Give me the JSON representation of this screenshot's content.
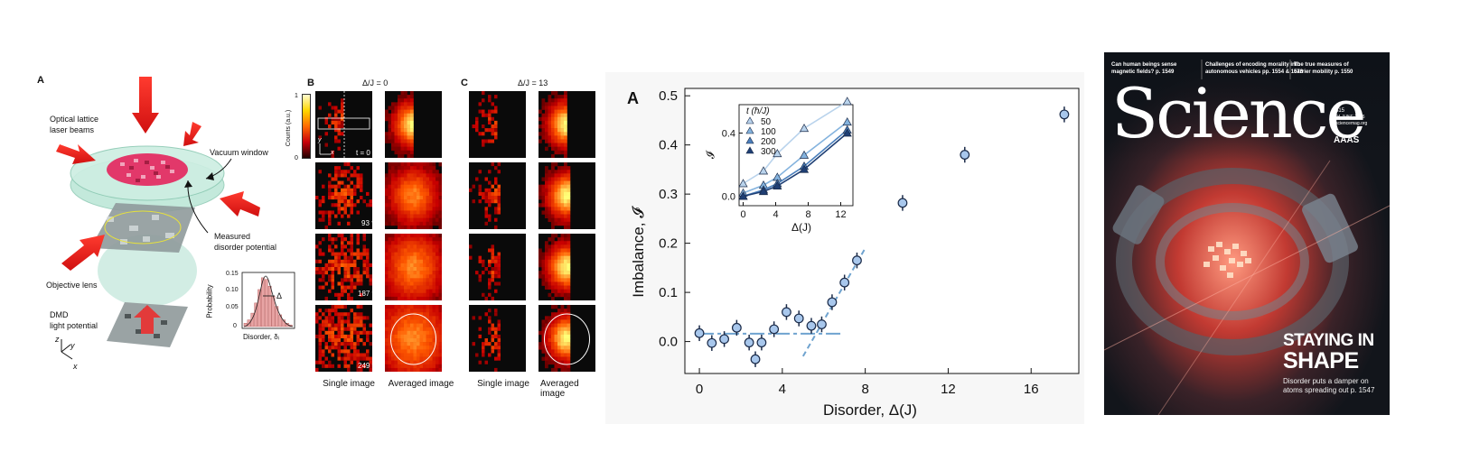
{
  "panel_a": {
    "letter": "A",
    "labels": {
      "laser": "Optical lattice\nlaser beams",
      "vacuum": "Vacuum window",
      "disorder": "Measured\ndisorder potential",
      "objective": "Objective lens",
      "dmd": "DMD\nlight potential",
      "ax_z": "z",
      "ax_y": "y",
      "ax_x": "x"
    },
    "histogram": {
      "ylabel": "Probability",
      "xlabel": "Disorder, δᵢ",
      "yticks": [
        "0.15",
        "0.10",
        "0.05",
        "0"
      ],
      "delta": "Δ",
      "bars": [
        0.01,
        0.02,
        0.04,
        0.07,
        0.11,
        0.145,
        0.14,
        0.12,
        0.09,
        0.06,
        0.035,
        0.02,
        0.01,
        0.005
      ]
    }
  },
  "panel_b": {
    "letter": "B",
    "title": "Δ/J = 0",
    "colorbar": {
      "label": "Counts (a.u.)",
      "max": "1",
      "min": "0"
    },
    "times": [
      "t = 0 τ",
      "93 τ",
      "187 τ",
      "249 τ"
    ],
    "ax_y": "y",
    "ax_x": "x",
    "col_labels": [
      "Single image",
      "Averaged image"
    ]
  },
  "panel_c": {
    "letter": "C",
    "title": "Δ/J = 13",
    "col_labels": [
      "Single image",
      "Averaged image"
    ]
  },
  "chart_data": [
    {
      "type": "scatter",
      "panel_letter": "A",
      "title": "",
      "xlabel": "Disorder, Δ(J)",
      "ylabel": "Imbalance, 𝓘",
      "xlim": [
        -0.7,
        18.3
      ],
      "ylim": [
        -0.065,
        0.515
      ],
      "xticks": [
        0,
        4,
        8,
        12,
        16
      ],
      "yticks": [
        0.0,
        0.1,
        0.2,
        0.3,
        0.4,
        0.5
      ],
      "series": [
        {
          "name": "Imbalance",
          "x": [
            0,
            0.6,
            1.2,
            1.8,
            2.4,
            2.7,
            3.0,
            3.6,
            4.2,
            4.8,
            5.4,
            5.9,
            6.4,
            7.0,
            7.6,
            9.8,
            12.8,
            17.6
          ],
          "y": [
            0.017,
            -0.003,
            0.005,
            0.028,
            -0.002,
            -0.036,
            -0.002,
            0.025,
            0.06,
            0.047,
            0.032,
            0.035,
            0.08,
            0.12,
            0.165,
            0.282,
            0.38,
            0.462
          ],
          "yerr": 0.016
        }
      ],
      "guides": [
        {
          "name": "baseline",
          "x": [
            0,
            6.8
          ],
          "y": [
            0.016,
            0.016
          ]
        },
        {
          "name": "rise",
          "x": [
            5.0,
            8.0
          ],
          "y": [
            -0.03,
            0.19
          ]
        }
      ]
    },
    {
      "type": "line",
      "role": "inset",
      "xlabel": "Δ(J)",
      "ylabel": "𝓘",
      "xlim": [
        -0.5,
        13.5
      ],
      "ylim": [
        -0.06,
        0.58
      ],
      "xticks": [
        0,
        4,
        8,
        12
      ],
      "yticks": [
        0.0,
        0.4
      ],
      "legend_title": "t (ħ/J)",
      "x": [
        0,
        2.5,
        4.2,
        7.5,
        12.8
      ],
      "series": [
        {
          "name": "50",
          "color": "#b9d3ec",
          "values": [
            0.08,
            0.16,
            0.27,
            0.43,
            0.6
          ]
        },
        {
          "name": "100",
          "color": "#84b3de",
          "values": [
            0.02,
            0.07,
            0.12,
            0.26,
            0.47
          ]
        },
        {
          "name": "200",
          "color": "#4a7fbc",
          "values": [
            0.0,
            0.04,
            0.08,
            0.19,
            0.42
          ]
        },
        {
          "name": "300",
          "color": "#1f3f74",
          "values": [
            0.0,
            0.03,
            0.065,
            0.17,
            0.4
          ]
        }
      ]
    }
  ],
  "cover": {
    "teasers": [
      "Can human beings sense\nmagnetic fields? p. 1549",
      "Challenges of encoding morality into\nautonomous vehicles pp. 1554 & 1573",
      "The true measures of\ncarrier mobility p. 1550"
    ],
    "masthead": "Science",
    "issue_no": "$15",
    "issue_date": "24 JUNE 2016",
    "site": "sciencemag.org",
    "publisher": "AAAS",
    "headline_1": "STAYING IN",
    "headline_2": "SHAPE",
    "subline": "Disorder puts a damper on\natoms spreading out p. 1547"
  }
}
